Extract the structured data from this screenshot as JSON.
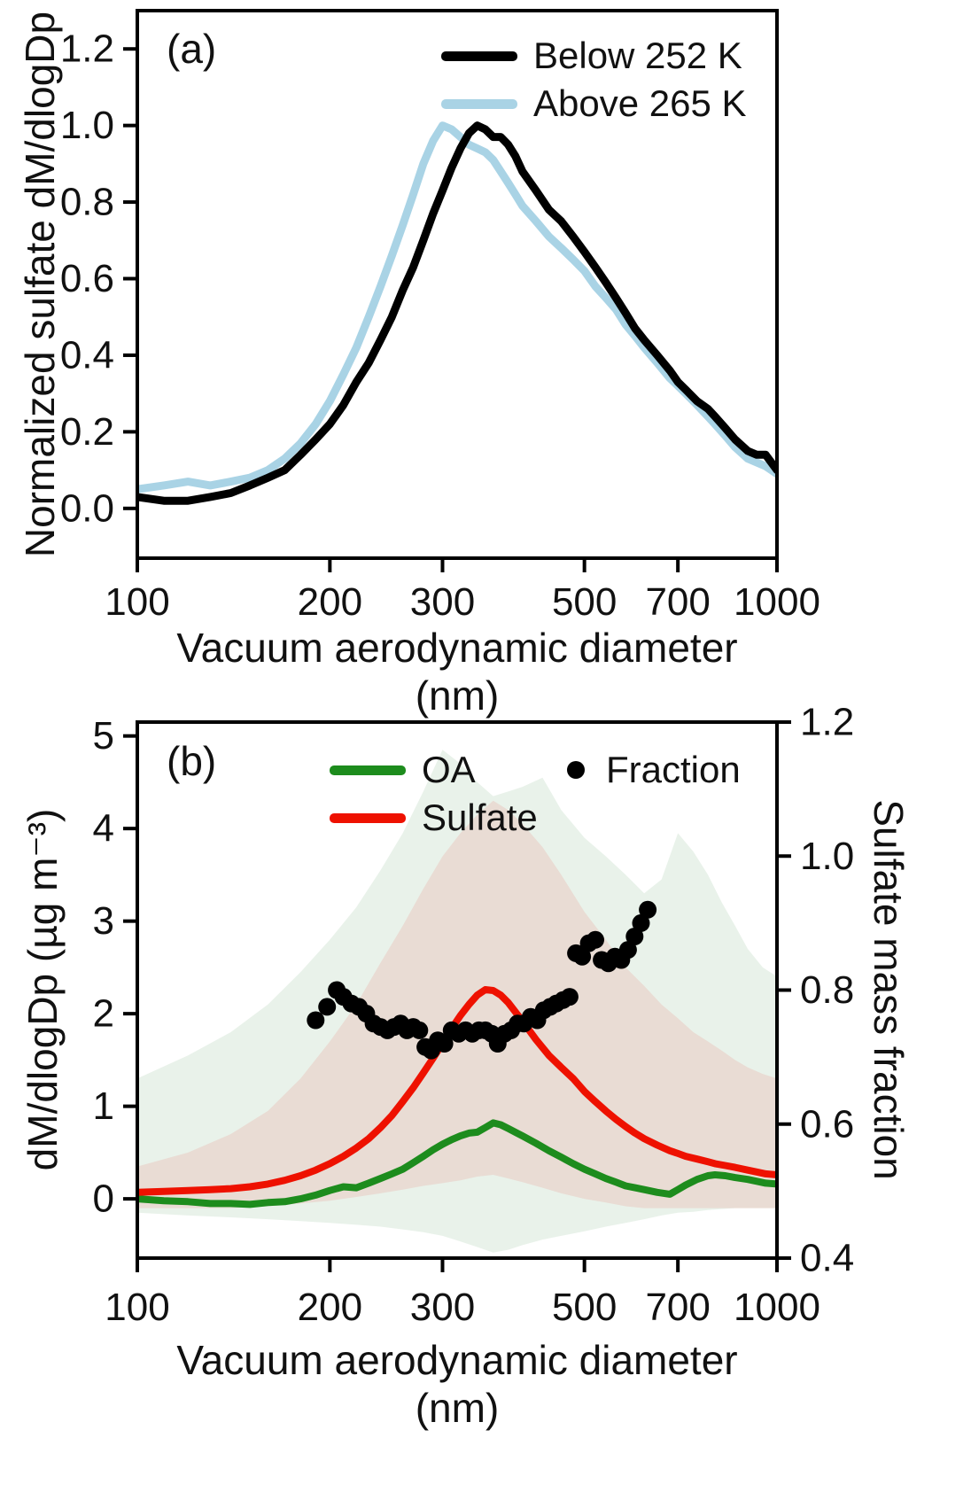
{
  "chart_data": [
    {
      "type": "line",
      "panel_label": "(a)",
      "xscale": "log",
      "xlabel": "Vacuum aerodynamic diameter (nm)",
      "ylabel": "Normalized sulfate dM/dlogDp",
      "xlim": [
        100,
        1000
      ],
      "ylim": [
        -0.13,
        1.3
      ],
      "xticks": [
        100,
        200,
        300,
        500,
        700,
        1000
      ],
      "xtick_labels": [
        "100",
        "200",
        "300",
        "500",
        "700",
        "1000"
      ],
      "yticks": [
        0.0,
        0.2,
        0.4,
        0.6,
        0.8,
        1.0,
        1.2
      ],
      "ytick_labels": [
        "0.0",
        "0.2",
        "0.4",
        "0.6",
        "0.8",
        "1.0",
        "1.2"
      ],
      "legend_position": "top-right",
      "grid": false,
      "series": [
        {
          "name": "Below 252 K",
          "color": "#000000",
          "linewidth": 9,
          "x": [
            100,
            110,
            120,
            130,
            140,
            150,
            160,
            170,
            180,
            190,
            200,
            210,
            220,
            230,
            240,
            250,
            260,
            270,
            280,
            290,
            300,
            310,
            320,
            330,
            340,
            350,
            360,
            370,
            380,
            390,
            400,
            420,
            440,
            460,
            480,
            500,
            520,
            540,
            560,
            580,
            600,
            620,
            650,
            680,
            700,
            720,
            750,
            780,
            800,
            830,
            860,
            900,
            930,
            960,
            1000
          ],
          "y": [
            0.03,
            0.02,
            0.02,
            0.03,
            0.04,
            0.06,
            0.08,
            0.1,
            0.14,
            0.18,
            0.22,
            0.27,
            0.33,
            0.38,
            0.44,
            0.5,
            0.57,
            0.63,
            0.7,
            0.77,
            0.83,
            0.89,
            0.94,
            0.98,
            1.0,
            0.99,
            0.97,
            0.97,
            0.95,
            0.92,
            0.88,
            0.83,
            0.78,
            0.75,
            0.71,
            0.67,
            0.63,
            0.59,
            0.55,
            0.51,
            0.47,
            0.44,
            0.4,
            0.36,
            0.33,
            0.31,
            0.28,
            0.26,
            0.24,
            0.21,
            0.18,
            0.15,
            0.14,
            0.14,
            0.1
          ]
        },
        {
          "name": "Above 265 K",
          "color": "#a9d3e5",
          "linewidth": 9,
          "x": [
            100,
            110,
            120,
            130,
            140,
            150,
            160,
            170,
            180,
            190,
            200,
            210,
            220,
            230,
            240,
            250,
            260,
            270,
            280,
            290,
            300,
            310,
            320,
            330,
            340,
            350,
            360,
            370,
            380,
            390,
            400,
            420,
            440,
            460,
            480,
            500,
            520,
            540,
            560,
            580,
            600,
            620,
            650,
            680,
            700,
            720,
            750,
            780,
            800,
            830,
            860,
            900,
            930,
            960,
            1000
          ],
          "y": [
            0.05,
            0.06,
            0.07,
            0.06,
            0.07,
            0.08,
            0.1,
            0.13,
            0.17,
            0.22,
            0.28,
            0.35,
            0.42,
            0.5,
            0.58,
            0.66,
            0.74,
            0.82,
            0.9,
            0.96,
            1.0,
            0.99,
            0.97,
            0.95,
            0.94,
            0.93,
            0.91,
            0.88,
            0.85,
            0.82,
            0.79,
            0.75,
            0.71,
            0.68,
            0.65,
            0.62,
            0.58,
            0.55,
            0.52,
            0.48,
            0.45,
            0.42,
            0.38,
            0.34,
            0.32,
            0.3,
            0.27,
            0.24,
            0.22,
            0.19,
            0.16,
            0.13,
            0.12,
            0.11,
            0.09
          ]
        }
      ]
    },
    {
      "type": "line+scatter",
      "panel_label": "(b)",
      "xscale": "log",
      "xlabel": "Vacuum aerodynamic diameter (nm)",
      "ylabel_left": "dM/dlogDp (µg m⁻³)",
      "ylabel_right": "Sulfate mass fraction",
      "xlim": [
        100,
        1000
      ],
      "ylim_left": [
        -0.64,
        5.15
      ],
      "ylim_right": [
        0.4,
        1.2
      ],
      "xticks": [
        100,
        200,
        300,
        500,
        700,
        1000
      ],
      "xtick_labels": [
        "100",
        "200",
        "300",
        "500",
        "700",
        "1000"
      ],
      "yticks_left": [
        0,
        1,
        2,
        3,
        4,
        5
      ],
      "ytick_labels_left": [
        "0",
        "1",
        "2",
        "3",
        "4",
        "5"
      ],
      "yticks_right": [
        0.4,
        0.6,
        0.8,
        1.0,
        1.2
      ],
      "ytick_labels_right": [
        "0.4",
        "0.6",
        "0.8",
        "1.0",
        "1.2"
      ],
      "grid": false,
      "bands": [
        {
          "name": "oa-variability-band",
          "fill": "rgba(40,130,50,0.10)",
          "x": [
            100,
            120,
            140,
            160,
            180,
            200,
            220,
            240,
            260,
            280,
            300,
            320,
            340,
            360,
            380,
            400,
            430,
            460,
            500,
            540,
            580,
            620,
            660,
            700,
            740,
            780,
            820,
            860,
            900,
            950,
            1000
          ],
          "upper": [
            1.3,
            1.55,
            1.8,
            2.1,
            2.45,
            2.8,
            3.15,
            3.55,
            3.95,
            4.4,
            4.85,
            4.7,
            4.5,
            4.35,
            4.4,
            4.45,
            4.55,
            4.2,
            3.9,
            3.7,
            3.5,
            3.3,
            3.45,
            3.95,
            3.75,
            3.5,
            3.2,
            2.95,
            2.7,
            2.5,
            2.4
          ],
          "lower": [
            -0.15,
            -0.18,
            -0.2,
            -0.22,
            -0.24,
            -0.26,
            -0.28,
            -0.3,
            -0.33,
            -0.36,
            -0.4,
            -0.46,
            -0.52,
            -0.58,
            -0.55,
            -0.5,
            -0.44,
            -0.4,
            -0.35,
            -0.3,
            -0.26,
            -0.22,
            -0.18,
            -0.15,
            -0.14,
            -0.12,
            -0.11,
            -0.1,
            -0.1,
            -0.1,
            -0.1
          ]
        },
        {
          "name": "sulfate-variability-band",
          "fill": "rgba(238,30,20,0.10)",
          "x": [
            100,
            120,
            140,
            160,
            180,
            200,
            220,
            240,
            260,
            280,
            300,
            320,
            340,
            360,
            380,
            400,
            430,
            460,
            500,
            540,
            580,
            620,
            660,
            700,
            740,
            780,
            820,
            860,
            900,
            950,
            1000
          ],
          "upper": [
            0.35,
            0.5,
            0.7,
            0.95,
            1.3,
            1.7,
            2.1,
            2.55,
            2.95,
            3.35,
            3.7,
            3.95,
            4.15,
            4.3,
            4.2,
            4.05,
            3.8,
            3.5,
            3.1,
            2.8,
            2.5,
            2.3,
            2.1,
            1.95,
            1.8,
            1.7,
            1.6,
            1.5,
            1.42,
            1.35,
            1.3
          ],
          "lower": [
            -0.1,
            -0.1,
            -0.1,
            -0.08,
            -0.05,
            -0.02,
            0.02,
            0.06,
            0.1,
            0.14,
            0.17,
            0.2,
            0.24,
            0.26,
            0.22,
            0.18,
            0.12,
            0.06,
            0.0,
            -0.04,
            -0.08,
            -0.1,
            -0.1,
            -0.1,
            -0.1,
            -0.1,
            -0.1,
            -0.1,
            -0.1,
            -0.1,
            -0.1
          ]
        }
      ],
      "series": [
        {
          "name": "OA",
          "color": "#1d8c1d",
          "linewidth": 8,
          "x": [
            100,
            110,
            120,
            130,
            140,
            150,
            160,
            170,
            180,
            190,
            200,
            210,
            220,
            230,
            240,
            250,
            260,
            270,
            280,
            290,
            300,
            310,
            320,
            330,
            340,
            350,
            360,
            370,
            380,
            390,
            400,
            420,
            440,
            460,
            480,
            500,
            520,
            540,
            560,
            580,
            600,
            620,
            650,
            680,
            700,
            720,
            750,
            780,
            800,
            830,
            860,
            900,
            930,
            960,
            1000
          ],
          "y": [
            0.0,
            -0.02,
            -0.03,
            -0.05,
            -0.05,
            -0.06,
            -0.04,
            -0.03,
            0.0,
            0.04,
            0.09,
            0.13,
            0.12,
            0.17,
            0.22,
            0.27,
            0.32,
            0.39,
            0.46,
            0.53,
            0.59,
            0.64,
            0.68,
            0.71,
            0.72,
            0.77,
            0.82,
            0.8,
            0.76,
            0.72,
            0.68,
            0.6,
            0.52,
            0.45,
            0.38,
            0.32,
            0.27,
            0.22,
            0.18,
            0.14,
            0.12,
            0.1,
            0.07,
            0.05,
            0.1,
            0.15,
            0.21,
            0.25,
            0.26,
            0.25,
            0.23,
            0.21,
            0.19,
            0.17,
            0.16
          ]
        },
        {
          "name": "Sulfate",
          "color": "#ee1100",
          "linewidth": 8,
          "x": [
            100,
            110,
            120,
            130,
            140,
            150,
            160,
            170,
            180,
            190,
            200,
            210,
            220,
            230,
            240,
            250,
            260,
            270,
            280,
            290,
            300,
            310,
            320,
            330,
            340,
            350,
            360,
            370,
            380,
            390,
            400,
            420,
            440,
            460,
            480,
            500,
            520,
            540,
            560,
            580,
            600,
            620,
            650,
            680,
            700,
            720,
            750,
            780,
            800,
            830,
            860,
            900,
            930,
            960,
            1000
          ],
          "y": [
            0.07,
            0.08,
            0.09,
            0.1,
            0.11,
            0.13,
            0.16,
            0.2,
            0.25,
            0.31,
            0.38,
            0.46,
            0.55,
            0.65,
            0.77,
            0.9,
            1.05,
            1.2,
            1.36,
            1.52,
            1.68,
            1.84,
            1.98,
            2.1,
            2.2,
            2.26,
            2.25,
            2.2,
            2.12,
            2.02,
            1.92,
            1.72,
            1.55,
            1.42,
            1.3,
            1.16,
            1.05,
            0.95,
            0.86,
            0.78,
            0.71,
            0.65,
            0.58,
            0.52,
            0.49,
            0.46,
            0.43,
            0.4,
            0.38,
            0.36,
            0.34,
            0.31,
            0.29,
            0.27,
            0.26
          ]
        }
      ],
      "scatter": {
        "name": "Fraction",
        "color": "#000000",
        "axis": "right",
        "x": [
          190,
          198,
          205,
          210,
          216,
          222,
          228,
          234,
          240,
          246,
          252,
          258,
          264,
          270,
          276,
          282,
          288,
          295,
          302,
          310,
          318,
          326,
          334,
          342,
          350,
          358,
          366,
          375,
          384,
          393,
          402,
          412,
          422,
          432,
          442,
          452,
          463,
          474,
          485,
          496,
          508,
          520,
          532,
          545,
          558,
          571,
          585,
          599,
          613,
          628
        ],
        "y": [
          0.755,
          0.775,
          0.8,
          0.79,
          0.78,
          0.775,
          0.765,
          0.75,
          0.745,
          0.74,
          0.745,
          0.75,
          0.74,
          0.745,
          0.74,
          0.715,
          0.71,
          0.725,
          0.72,
          0.74,
          0.735,
          0.74,
          0.735,
          0.74,
          0.74,
          0.735,
          0.72,
          0.735,
          0.74,
          0.75,
          0.75,
          0.76,
          0.755,
          0.77,
          0.775,
          0.78,
          0.785,
          0.79,
          0.855,
          0.85,
          0.87,
          0.875,
          0.845,
          0.84,
          0.85,
          0.845,
          0.86,
          0.88,
          0.9,
          0.92
        ]
      }
    }
  ]
}
